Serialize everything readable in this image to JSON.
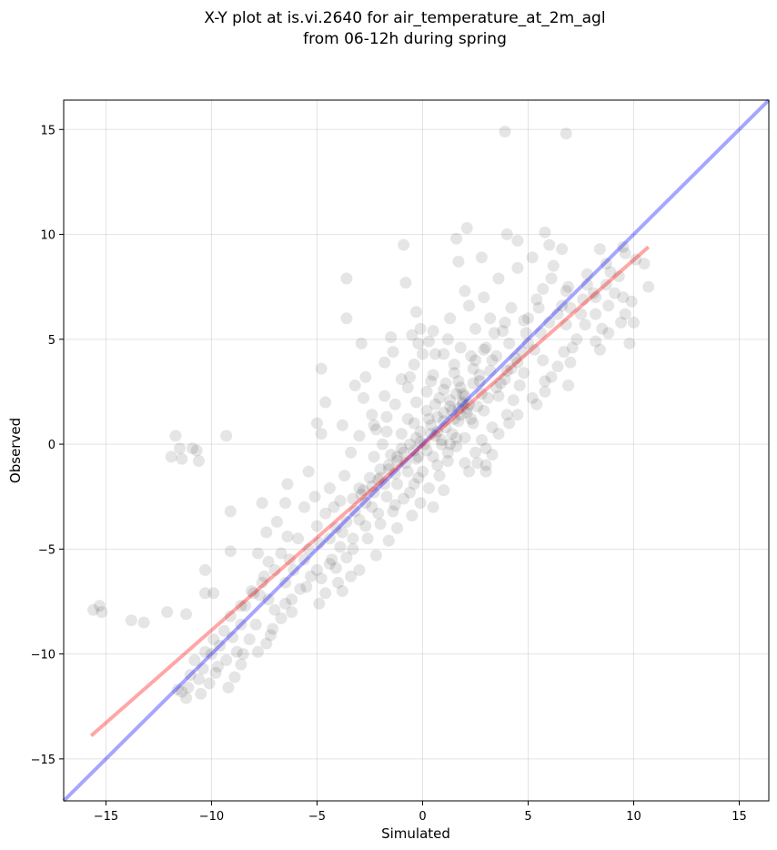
{
  "chart_data": {
    "type": "scatter",
    "title_lines": [
      "X-Y plot at is.vi.2640 for air_temperature_at_2m_agl",
      "from 06-12h during spring"
    ],
    "xlabel": "Simulated",
    "ylabel": "Observed",
    "xlim": [
      -17.0,
      16.4
    ],
    "ylim": [
      -17.0,
      16.4
    ],
    "x_ticks": [
      -15,
      -10,
      -5,
      0,
      5,
      10,
      15
    ],
    "y_ticks": [
      -15,
      -10,
      -5,
      0,
      5,
      10,
      15
    ],
    "x_tick_labels": [
      "−15",
      "−10",
      "−5",
      "0",
      "5",
      "10",
      "15"
    ],
    "y_tick_labels": [
      "−15",
      "−10",
      "−5",
      "0",
      "5",
      "10",
      "15"
    ],
    "grid": true,
    "point_color": "#000000",
    "point_alpha": 0.1,
    "points": [
      [
        3.9,
        14.9
      ],
      [
        6.8,
        14.8
      ],
      [
        2.1,
        10.3
      ],
      [
        5.8,
        10.1
      ],
      [
        1.6,
        9.8
      ],
      [
        4.0,
        10.0
      ],
      [
        4.5,
        9.7
      ],
      [
        6.0,
        9.5
      ],
      [
        6.6,
        9.3
      ],
      [
        -0.9,
        9.5
      ],
      [
        9.5,
        9.4
      ],
      [
        8.4,
        9.3
      ],
      [
        2.8,
        8.9
      ],
      [
        5.2,
        8.9
      ],
      [
        1.7,
        8.7
      ],
      [
        4.5,
        8.4
      ],
      [
        6.2,
        8.5
      ],
      [
        8.9,
        8.2
      ],
      [
        10.5,
        8.6
      ],
      [
        -3.6,
        7.9
      ],
      [
        -0.8,
        7.7
      ],
      [
        3.6,
        7.9
      ],
      [
        6.1,
        7.9
      ],
      [
        7.8,
        7.6
      ],
      [
        10.7,
        7.5
      ],
      [
        5.7,
        7.4
      ],
      [
        6.8,
        7.3
      ],
      [
        2.0,
        7.3
      ],
      [
        2.9,
        7.0
      ],
      [
        5.4,
        6.9
      ],
      [
        8.2,
        7.0
      ],
      [
        9.5,
        7.0
      ],
      [
        2.2,
        6.6
      ],
      [
        4.2,
        6.5
      ],
      [
        6.6,
        6.6
      ],
      [
        7.5,
        6.2
      ],
      [
        9.6,
        6.2
      ],
      [
        -0.3,
        6.3
      ],
      [
        1.3,
        6.0
      ],
      [
        3.2,
        6.0
      ],
      [
        5.0,
        6.0
      ],
      [
        -3.6,
        6.0
      ],
      [
        4.8,
        5.9
      ],
      [
        6.8,
        5.7
      ],
      [
        8.5,
        5.5
      ],
      [
        10.0,
        5.8
      ],
      [
        -0.1,
        5.5
      ],
      [
        0.5,
        5.4
      ],
      [
        2.5,
        5.5
      ],
      [
        3.8,
        5.4
      ],
      [
        -0.2,
        4.8
      ],
      [
        1.2,
        5.0
      ],
      [
        1.8,
        4.6
      ],
      [
        3.0,
        4.6
      ],
      [
        5.3,
        4.5
      ],
      [
        7.1,
        4.6
      ],
      [
        8.4,
        4.5
      ],
      [
        9.8,
        4.8
      ],
      [
        -2.9,
        4.8
      ],
      [
        -1.4,
        4.4
      ],
      [
        0.0,
        4.3
      ],
      [
        1.0,
        4.3
      ],
      [
        2.3,
        4.2
      ],
      [
        3.5,
        4.2
      ],
      [
        4.4,
        4.1
      ],
      [
        5.7,
        4.0
      ],
      [
        7.0,
        3.9
      ],
      [
        -4.8,
        3.6
      ],
      [
        -0.4,
        3.8
      ],
      [
        1.5,
        3.8
      ],
      [
        2.4,
        3.6
      ],
      [
        3.2,
        3.5
      ],
      [
        4.0,
        3.5
      ],
      [
        4.8,
        3.4
      ],
      [
        6.1,
        3.2
      ],
      [
        -2.7,
        3.2
      ],
      [
        -1.0,
        3.1
      ],
      [
        0.5,
        3.3
      ],
      [
        1.7,
        3.0
      ],
      [
        2.7,
        3.0
      ],
      [
        3.7,
        2.9
      ],
      [
        4.6,
        2.8
      ],
      [
        5.8,
        2.5
      ],
      [
        6.9,
        2.8
      ],
      [
        -3.2,
        2.8
      ],
      [
        -1.8,
        2.3
      ],
      [
        -0.7,
        2.7
      ],
      [
        0.2,
        2.5
      ],
      [
        1.0,
        2.6
      ],
      [
        1.9,
        2.4
      ],
      [
        2.8,
        2.4
      ],
      [
        3.6,
        2.3
      ],
      [
        4.3,
        2.1
      ],
      [
        5.4,
        1.9
      ],
      [
        -4.6,
        2.0
      ],
      [
        -2.8,
        2.2
      ],
      [
        -1.3,
        1.9
      ],
      [
        -0.3,
        2.0
      ],
      [
        0.6,
        1.9
      ],
      [
        1.3,
        1.8
      ],
      [
        2.1,
        1.7
      ],
      [
        2.9,
        1.6
      ],
      [
        4.0,
        1.4
      ],
      [
        -2.4,
        1.4
      ],
      [
        -1.7,
        1.3
      ],
      [
        -0.7,
        1.2
      ],
      [
        0.3,
        1.2
      ],
      [
        1.0,
        1.1
      ],
      [
        1.7,
        1.1
      ],
      [
        2.4,
        1.0
      ],
      [
        3.3,
        0.8
      ],
      [
        4.5,
        1.4
      ],
      [
        -5.0,
        1.0
      ],
      [
        -3.8,
        0.9
      ],
      [
        -2.2,
        0.7
      ],
      [
        -1.0,
        0.5
      ],
      [
        -0.1,
        0.6
      ],
      [
        0.7,
        0.6
      ],
      [
        1.4,
        0.5
      ],
      [
        2.0,
        0.3
      ],
      [
        2.8,
        0.2
      ],
      [
        -4.8,
        0.5
      ],
      [
        -3.0,
        0.4
      ],
      [
        -1.9,
        0.0
      ],
      [
        -0.6,
        0.0
      ],
      [
        0.1,
        0.0
      ],
      [
        0.9,
        0.0
      ],
      [
        1.6,
        -0.1
      ],
      [
        2.5,
        -0.4
      ],
      [
        3.3,
        -0.5
      ],
      [
        -3.4,
        -0.4
      ],
      [
        -2.3,
        -0.6
      ],
      [
        -1.2,
        -0.6
      ],
      [
        -0.3,
        -0.7
      ],
      [
        0.5,
        -0.6
      ],
      [
        1.2,
        -0.8
      ],
      [
        2.0,
        -0.9
      ],
      [
        3.0,
        -1.0
      ],
      [
        -1.6,
        -1.2
      ],
      [
        -0.7,
        -1.3
      ],
      [
        0.0,
        -1.3
      ],
      [
        0.8,
        -1.5
      ],
      [
        3.0,
        -1.3
      ],
      [
        -3.7,
        -1.5
      ],
      [
        -2.1,
        -1.7
      ],
      [
        -1.2,
        -1.9
      ],
      [
        -0.4,
        -1.9
      ],
      [
        0.3,
        -2.1
      ],
      [
        1.0,
        -2.2
      ],
      [
        -5.4,
        -1.3
      ],
      [
        -4.4,
        -2.1
      ],
      [
        -2.8,
        -2.2
      ],
      [
        -1.7,
        -2.5
      ],
      [
        -0.9,
        -2.6
      ],
      [
        -0.1,
        -2.8
      ],
      [
        0.5,
        -3.0
      ],
      [
        -6.4,
        -1.9
      ],
      [
        -5.1,
        -2.5
      ],
      [
        -3.9,
        -2.7
      ],
      [
        -2.4,
        -3.0
      ],
      [
        -1.4,
        -3.2
      ],
      [
        -0.5,
        -3.4
      ],
      [
        -7.6,
        -2.8
      ],
      [
        -6.5,
        -2.8
      ],
      [
        -5.6,
        -3.0
      ],
      [
        -4.6,
        -3.3
      ],
      [
        -3.0,
        -3.6
      ],
      [
        -2.0,
        -3.8
      ],
      [
        -1.2,
        -4.0
      ],
      [
        -9.1,
        -3.2
      ],
      [
        -6.9,
        -3.7
      ],
      [
        -5.0,
        -3.9
      ],
      [
        -3.8,
        -4.2
      ],
      [
        -2.6,
        -4.5
      ],
      [
        -1.6,
        -4.6
      ],
      [
        -7.4,
        -4.2
      ],
      [
        -6.4,
        -4.4
      ],
      [
        -4.9,
        -4.7
      ],
      [
        -3.3,
        -5.0
      ],
      [
        -2.2,
        -5.3
      ],
      [
        -9.1,
        -5.1
      ],
      [
        -7.8,
        -5.2
      ],
      [
        -6.7,
        -5.2
      ],
      [
        -5.6,
        -5.5
      ],
      [
        -4.4,
        -5.7
      ],
      [
        -3.0,
        -6.0
      ],
      [
        -7.3,
        -5.6
      ],
      [
        -6.1,
        -6.0
      ],
      [
        -5.3,
        -6.3
      ],
      [
        -4.0,
        -6.6
      ],
      [
        -3.4,
        -6.3
      ],
      [
        -10.3,
        -6.0
      ],
      [
        -7.5,
        -6.3
      ],
      [
        -6.5,
        -6.6
      ],
      [
        -5.8,
        -6.9
      ],
      [
        -4.6,
        -7.1
      ],
      [
        -3.8,
        -7.0
      ],
      [
        -10.3,
        -7.1
      ],
      [
        -9.9,
        -7.1
      ],
      [
        -8.0,
        -7.1
      ],
      [
        -7.3,
        -7.4
      ],
      [
        -6.5,
        -7.6
      ],
      [
        -4.9,
        -7.6
      ],
      [
        -8.4,
        -7.7
      ],
      [
        -7.7,
        -7.2
      ],
      [
        -7.0,
        -7.9
      ],
      [
        -6.2,
        -8.0
      ],
      [
        -7.9,
        -8.6
      ],
      [
        -8.6,
        -8.6
      ],
      [
        -7.1,
        -8.8
      ],
      [
        -9.0,
        -9.2
      ],
      [
        -8.2,
        -9.3
      ],
      [
        -7.4,
        -9.5
      ],
      [
        -9.6,
        -9.6
      ],
      [
        -8.8,
        -9.9
      ],
      [
        -10.0,
        -10.0
      ],
      [
        -9.3,
        -10.3
      ],
      [
        -8.5,
        -10.0
      ],
      [
        -10.4,
        -10.7
      ],
      [
        -9.8,
        -10.9
      ],
      [
        -8.9,
        -11.1
      ],
      [
        -10.6,
        -11.2
      ],
      [
        -11.1,
        -11.6
      ],
      [
        -10.1,
        -11.4
      ],
      [
        -11.6,
        -11.7
      ],
      [
        -11.2,
        -12.1
      ],
      [
        -11.4,
        -11.8
      ],
      [
        -15.6,
        -7.9
      ],
      [
        -15.3,
        -7.7
      ],
      [
        -15.2,
        -8.0
      ],
      [
        -13.8,
        -8.4
      ],
      [
        -13.2,
        -8.5
      ],
      [
        -12.1,
        -8.0
      ],
      [
        -11.2,
        -8.1
      ],
      [
        -11.9,
        -0.6
      ],
      [
        -11.4,
        -0.7
      ],
      [
        -11.5,
        -0.2
      ],
      [
        -11.7,
        0.4
      ],
      [
        -10.9,
        -0.2
      ],
      [
        -10.6,
        -0.8
      ],
      [
        -10.7,
        -0.3
      ],
      [
        -9.3,
        0.4
      ],
      [
        -1.8,
        3.9
      ],
      [
        -1.5,
        5.1
      ],
      [
        -0.5,
        5.2
      ],
      [
        0.3,
        4.9
      ],
      [
        0.6,
        4.3
      ],
      [
        -0.6,
        3.2
      ],
      [
        0.4,
        3.0
      ],
      [
        1.6,
        2.4
      ],
      [
        1.9,
        2.0
      ],
      [
        2.1,
        1.5
      ],
      [
        1.5,
        1.2
      ],
      [
        1.1,
        0.8
      ],
      [
        0.6,
        0.4
      ],
      [
        0.2,
        -0.3
      ],
      [
        -0.2,
        -0.6
      ],
      [
        -0.8,
        -0.9
      ],
      [
        -1.3,
        -1.4
      ],
      [
        -1.8,
        -1.9
      ],
      [
        -2.3,
        -2.3
      ],
      [
        -2.7,
        -2.8
      ],
      [
        -3.2,
        -3.2
      ],
      [
        -3.6,
        -3.7
      ],
      [
        -4.1,
        -4.0
      ],
      [
        -4.4,
        -4.5
      ],
      [
        1.9,
        1.9
      ],
      [
        2.0,
        2.3
      ],
      [
        1.8,
        1.4
      ],
      [
        1.4,
        1.6
      ],
      [
        2.3,
        1.2
      ],
      [
        1.0,
        1.5
      ],
      [
        0.9,
        0.2
      ],
      [
        1.3,
        0.0
      ],
      [
        0.4,
        0.9
      ],
      [
        -0.3,
        0.3
      ],
      [
        2.6,
        1.8
      ],
      [
        3.1,
        2.2
      ],
      [
        3.5,
        2.7
      ],
      [
        3.9,
        3.1
      ],
      [
        4.2,
        3.6
      ],
      [
        4.5,
        3.9
      ],
      [
        4.7,
        4.4
      ],
      [
        5.0,
        4.8
      ],
      [
        5.6,
        5.3
      ],
      [
        6.0,
        5.8
      ],
      [
        6.4,
        6.2
      ],
      [
        7.0,
        6.5
      ],
      [
        7.6,
        6.9
      ],
      [
        8.1,
        7.2
      ],
      [
        8.7,
        7.6
      ],
      [
        9.3,
        8.0
      ],
      [
        10.1,
        8.8
      ],
      [
        9.6,
        9.1
      ],
      [
        8.7,
        8.6
      ],
      [
        7.8,
        8.1
      ],
      [
        6.9,
        7.5
      ],
      [
        5.5,
        6.5
      ],
      [
        4.9,
        5.3
      ],
      [
        4.1,
        4.8
      ],
      [
        3.3,
        4.0
      ],
      [
        2.7,
        3.3
      ],
      [
        5.2,
        2.2
      ],
      [
        5.8,
        3.0
      ],
      [
        6.4,
        3.7
      ],
      [
        6.7,
        4.4
      ],
      [
        7.3,
        5.0
      ],
      [
        7.7,
        5.7
      ],
      [
        8.2,
        6.2
      ],
      [
        8.8,
        6.6
      ],
      [
        9.1,
        7.2
      ],
      [
        9.9,
        6.8
      ],
      [
        9.4,
        5.8
      ],
      [
        8.8,
        5.3
      ],
      [
        8.2,
        4.9
      ],
      [
        3.0,
        -0.2
      ],
      [
        2.6,
        -0.9
      ],
      [
        2.2,
        -1.3
      ],
      [
        3.6,
        0.5
      ],
      [
        4.1,
        1.0
      ],
      [
        -0.6,
        -2.3
      ],
      [
        -0.2,
        -1.6
      ],
      [
        0.7,
        -1.0
      ],
      [
        -1.0,
        -0.2
      ],
      [
        -1.5,
        -0.5
      ],
      [
        -2.0,
        -1.2
      ],
      [
        -2.5,
        -1.6
      ],
      [
        -3.0,
        -2.1
      ],
      [
        -1.3,
        -2.9
      ],
      [
        -2.1,
        -3.3
      ],
      [
        -2.7,
        -3.9
      ],
      [
        -3.3,
        -4.5
      ],
      [
        -3.6,
        -5.4
      ],
      [
        -4.1,
        -5.9
      ],
      [
        -5.0,
        -6.0
      ],
      [
        -5.4,
        -5.0
      ],
      [
        -5.9,
        -4.5
      ],
      [
        -6.3,
        -5.5
      ],
      [
        -7.0,
        -6.0
      ],
      [
        -7.6,
        -6.6
      ],
      [
        -8.1,
        -7.0
      ],
      [
        -8.6,
        -7.7
      ],
      [
        -9.1,
        -8.2
      ],
      [
        -9.4,
        -8.9
      ],
      [
        -9.9,
        -9.3
      ],
      [
        -10.3,
        -9.9
      ],
      [
        -9.7,
        -10.6
      ],
      [
        -10.8,
        -10.3
      ],
      [
        -11.0,
        -11.0
      ],
      [
        -10.5,
        -11.9
      ],
      [
        -9.2,
        -11.6
      ],
      [
        -8.6,
        -10.5
      ],
      [
        -7.8,
        -9.9
      ],
      [
        -7.2,
        -9.1
      ],
      [
        -6.7,
        -8.3
      ],
      [
        -6.2,
        -7.4
      ],
      [
        -5.5,
        -6.8
      ],
      [
        -4.8,
        -6.4
      ],
      [
        -4.3,
        -5.5
      ],
      [
        -3.9,
        -4.9
      ],
      [
        0.8,
        2.2
      ],
      [
        1.1,
        2.9
      ],
      [
        1.5,
        3.4
      ],
      [
        2.5,
        4.0
      ],
      [
        2.9,
        4.5
      ],
      [
        3.4,
        5.3
      ],
      [
        3.9,
        5.8
      ],
      [
        1.2,
        -0.4
      ],
      [
        1.6,
        0.3
      ],
      [
        0.2,
        1.6
      ],
      [
        -0.4,
        1.0
      ],
      [
        -1.7,
        0.6
      ],
      [
        -2.3,
        0.9
      ],
      [
        2.4,
        2.9
      ],
      [
        2.2,
        1.9
      ],
      [
        1.7,
        1.7
      ],
      [
        1.8,
        2.7
      ],
      [
        1.3,
        2.1
      ],
      [
        0.7,
        1.3
      ],
      [
        0.4,
        0.5
      ],
      [
        -0.1,
        0.1
      ],
      [
        -0.4,
        -0.3
      ],
      [
        -0.9,
        -0.4
      ],
      [
        -1.2,
        -0.8
      ],
      [
        -1.6,
        -1.0
      ],
      [
        -2.0,
        -1.6
      ],
      [
        -2.4,
        -2.0
      ],
      [
        -2.9,
        -2.4
      ],
      [
        -3.3,
        -2.6
      ],
      [
        -4.2,
        -3.0
      ]
    ],
    "lines": [
      {
        "color": "#0000ff",
        "alpha": 0.35,
        "x": [
          -17.0,
          16.4
        ],
        "y": [
          -17.0,
          16.4
        ]
      },
      {
        "color": "#ff0000",
        "alpha": 0.35,
        "x": [
          -15.7,
          10.7
        ],
        "y": [
          -13.9,
          9.4
        ]
      }
    ]
  }
}
